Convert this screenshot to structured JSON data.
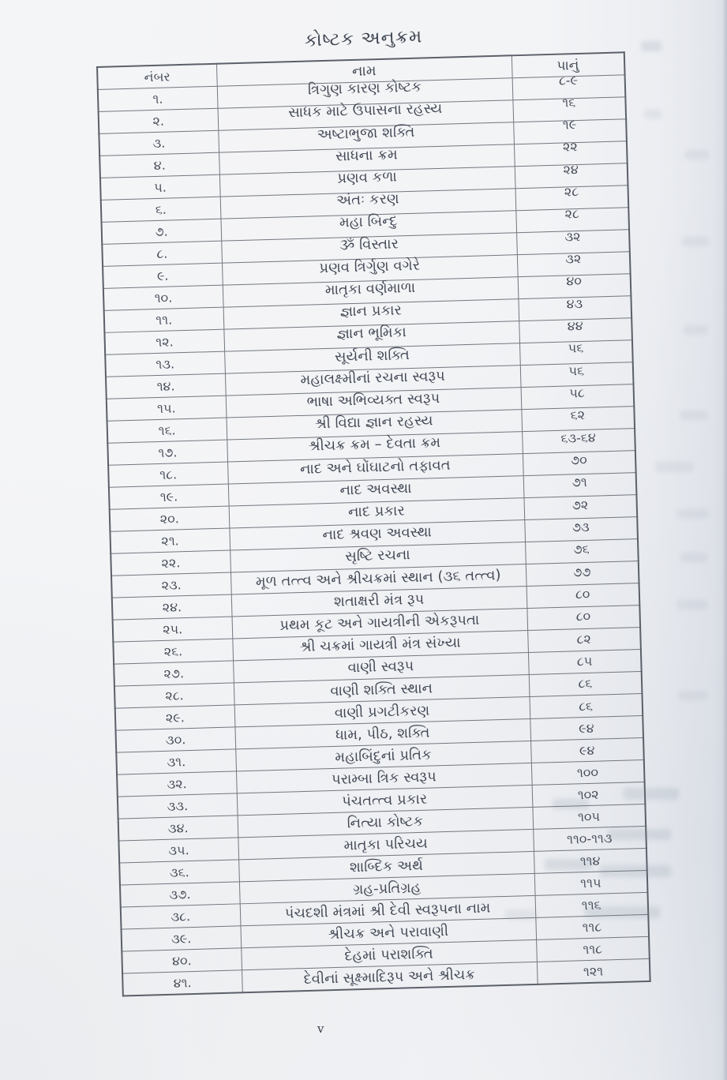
{
  "document": {
    "title": "કોષ્ટક અનુક્રમ",
    "page_marker": "v"
  },
  "table": {
    "headers": {
      "number": "નંબર",
      "name": "નામ",
      "page": "પાનું"
    },
    "rows": [
      {
        "number": "૧.",
        "name": "ત્રિગુણ કારણ કોષ્ટક",
        "page": "૮-૯"
      },
      {
        "number": "૨.",
        "name": "સાધક માટે ઉપાસના રહસ્ય",
        "page": "૧૬"
      },
      {
        "number": "૩.",
        "name": "અષ્ટાભુજા શક્તિ",
        "page": "૧૯"
      },
      {
        "number": "૪.",
        "name": "સાધના ક્રમ",
        "page": "૨૨"
      },
      {
        "number": "૫.",
        "name": "પ્રણવ કળા",
        "page": "૨૪"
      },
      {
        "number": "૬.",
        "name": "અંતઃ કરણ",
        "page": "૨૮"
      },
      {
        "number": "૭.",
        "name": "મહા બિન્દુ",
        "page": "૨૮"
      },
      {
        "number": "૮.",
        "name": "ૐ વિસ્તાર",
        "page": "૩૨"
      },
      {
        "number": "૯.",
        "name": "પ્રણવ ત્રિર્ગુણ વગેરે",
        "page": "૩૨"
      },
      {
        "number": "૧૦.",
        "name": "માતૃકા વર્ણમાળા",
        "page": "૪૦"
      },
      {
        "number": "૧૧.",
        "name": "જ્ઞાન પ્રકાર",
        "page": "૪૩"
      },
      {
        "number": "૧૨.",
        "name": "જ્ઞાન ભૂમિકા",
        "page": "૪૪"
      },
      {
        "number": "૧૩.",
        "name": "સૂર્યની શક્તિ",
        "page": "૫૬"
      },
      {
        "number": "૧૪.",
        "name": "મહાલક્ષ્મીનાં રચના સ્વરૂપ",
        "page": "૫૬"
      },
      {
        "number": "૧૫.",
        "name": "ભાષા અભિવ્યક્ત સ્વરૂપ",
        "page": "૫૮"
      },
      {
        "number": "૧૬.",
        "name": "શ્રી વિદ્યા જ્ઞાન રહસ્ય",
        "page": "૬૨"
      },
      {
        "number": "૧૭.",
        "name": "શ્રીચક્ર ક્રમ – દેવતા ક્રમ",
        "page": "૬૩-૬૪"
      },
      {
        "number": "૧૮.",
        "name": "નાદ અને ઘોંઘાટનો તફાવત",
        "page": "૭૦"
      },
      {
        "number": "૧૯.",
        "name": "નાદ અવસ્થા",
        "page": "૭૧"
      },
      {
        "number": "૨૦.",
        "name": "નાદ પ્રકાર",
        "page": "૭૨"
      },
      {
        "number": "૨૧.",
        "name": "નાદ શ્રવણ અવસ્થા",
        "page": "૭૩"
      },
      {
        "number": "૨૨.",
        "name": "સૃષ્ટિ રચના",
        "page": "૭૬"
      },
      {
        "number": "૨૩.",
        "name": "મૂળ તત્ત્વ અને શ્રીચક્રમાં સ્થાન (૩૬ તત્ત્વ)",
        "page": "૭૭"
      },
      {
        "number": "૨૪.",
        "name": "શતાક્ષરી મંત્ર રૂપ",
        "page": "૮૦"
      },
      {
        "number": "૨૫.",
        "name": "પ્રથમ કૂટ અને ગાયત્રીની એકરૂપતા",
        "page": "૮૦"
      },
      {
        "number": "૨૬.",
        "name": "શ્રી ચક્રમાં ગાયત્રી મંત્ર સંખ્યા",
        "page": "૮૨"
      },
      {
        "number": "૨૭.",
        "name": "વાણી સ્વરૂપ",
        "page": "૮૫"
      },
      {
        "number": "૨૮.",
        "name": "વાણી શક્તિ સ્થાન",
        "page": "૮૬"
      },
      {
        "number": "૨૯.",
        "name": "વાણી પ્રગટીકરણ",
        "page": "૮૬"
      },
      {
        "number": "૩૦.",
        "name": "ધામ, પીઠ, શક્તિ",
        "page": "૯૪"
      },
      {
        "number": "૩૧.",
        "name": "મહાબિંદુનાં પ્રતિક",
        "page": "૯૪"
      },
      {
        "number": "૩૨.",
        "name": "પરામ્બા ત્રિક સ્વરૂપ",
        "page": "૧૦૦"
      },
      {
        "number": "૩૩.",
        "name": "પંચતત્ત્વ પ્રકાર",
        "page": "૧૦૨"
      },
      {
        "number": "૩૪.",
        "name": "નિત્યા કોષ્ટક",
        "page": "૧૦૫"
      },
      {
        "number": "૩૫.",
        "name": "માતૃકા પરિચય",
        "page": "૧૧૦-૧૧૩"
      },
      {
        "number": "૩૬.",
        "name": "શાબ્દિક અર્થ",
        "page": "૧૧૪"
      },
      {
        "number": "૩૭.",
        "name": "ગ્રહ-પ્રતિગ્રહ",
        "page": "૧૧૫"
      },
      {
        "number": "૩૮.",
        "name": "પંચદશી મંત્રમાં શ્રી દેવી સ્વરૂપના નામ",
        "page": "૧૧૬"
      },
      {
        "number": "૩૯.",
        "name": "શ્રીચક્ર અને પરાવાણી",
        "page": "૧૧૮"
      },
      {
        "number": "૪૦.",
        "name": "દેહમાં પરાશક્તિ",
        "page": "૧૧૮"
      },
      {
        "number": "૪૧.",
        "name": "દેવીનાં સૂક્ષ્માદિરૂપ અને શ્રીચક્ર",
        "page": "૧૨૧"
      }
    ]
  },
  "colors": {
    "paper": "#f3f4f6",
    "ink": "#3f4550",
    "table_line": "#72777f"
  }
}
